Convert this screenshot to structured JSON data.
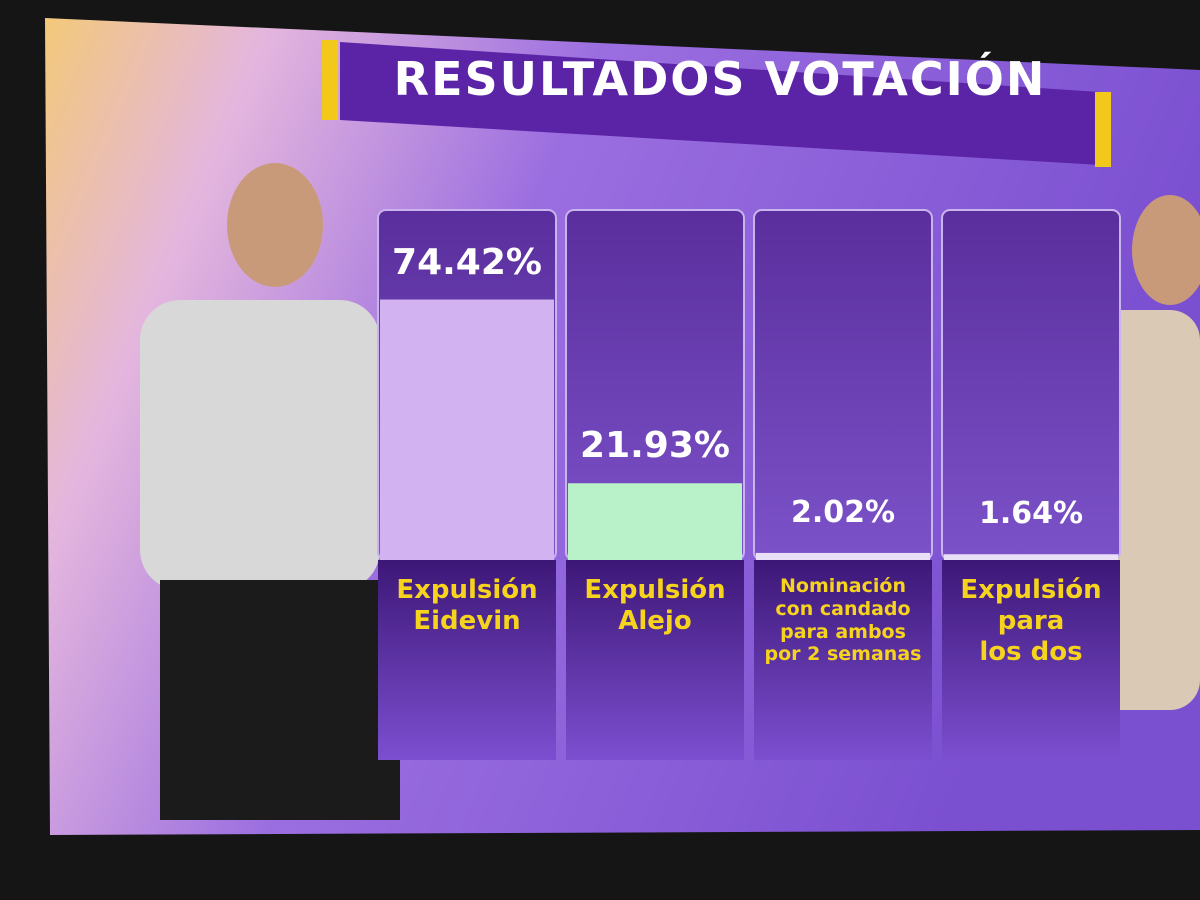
{
  "chart_data": {
    "type": "bar",
    "title": "RESULTADOS VOTACIÓN",
    "categories": [
      "Expulsión\nEidevin",
      "Expulsión\nAlejo",
      "Nominación\ncon candado\npara ambos\npor 2 semanas",
      "Expulsión\npara\nlos dos"
    ],
    "values": [
      74.42,
      21.93,
      2.02,
      1.64
    ],
    "value_labels": [
      "74.42%",
      "21.93%",
      "2.02%",
      "1.64%"
    ],
    "colors": [
      "#d2b2f0",
      "#b9f2c9",
      "#e9e0f7",
      "#e9e0f7"
    ],
    "ylim": [
      0,
      100
    ]
  }
}
